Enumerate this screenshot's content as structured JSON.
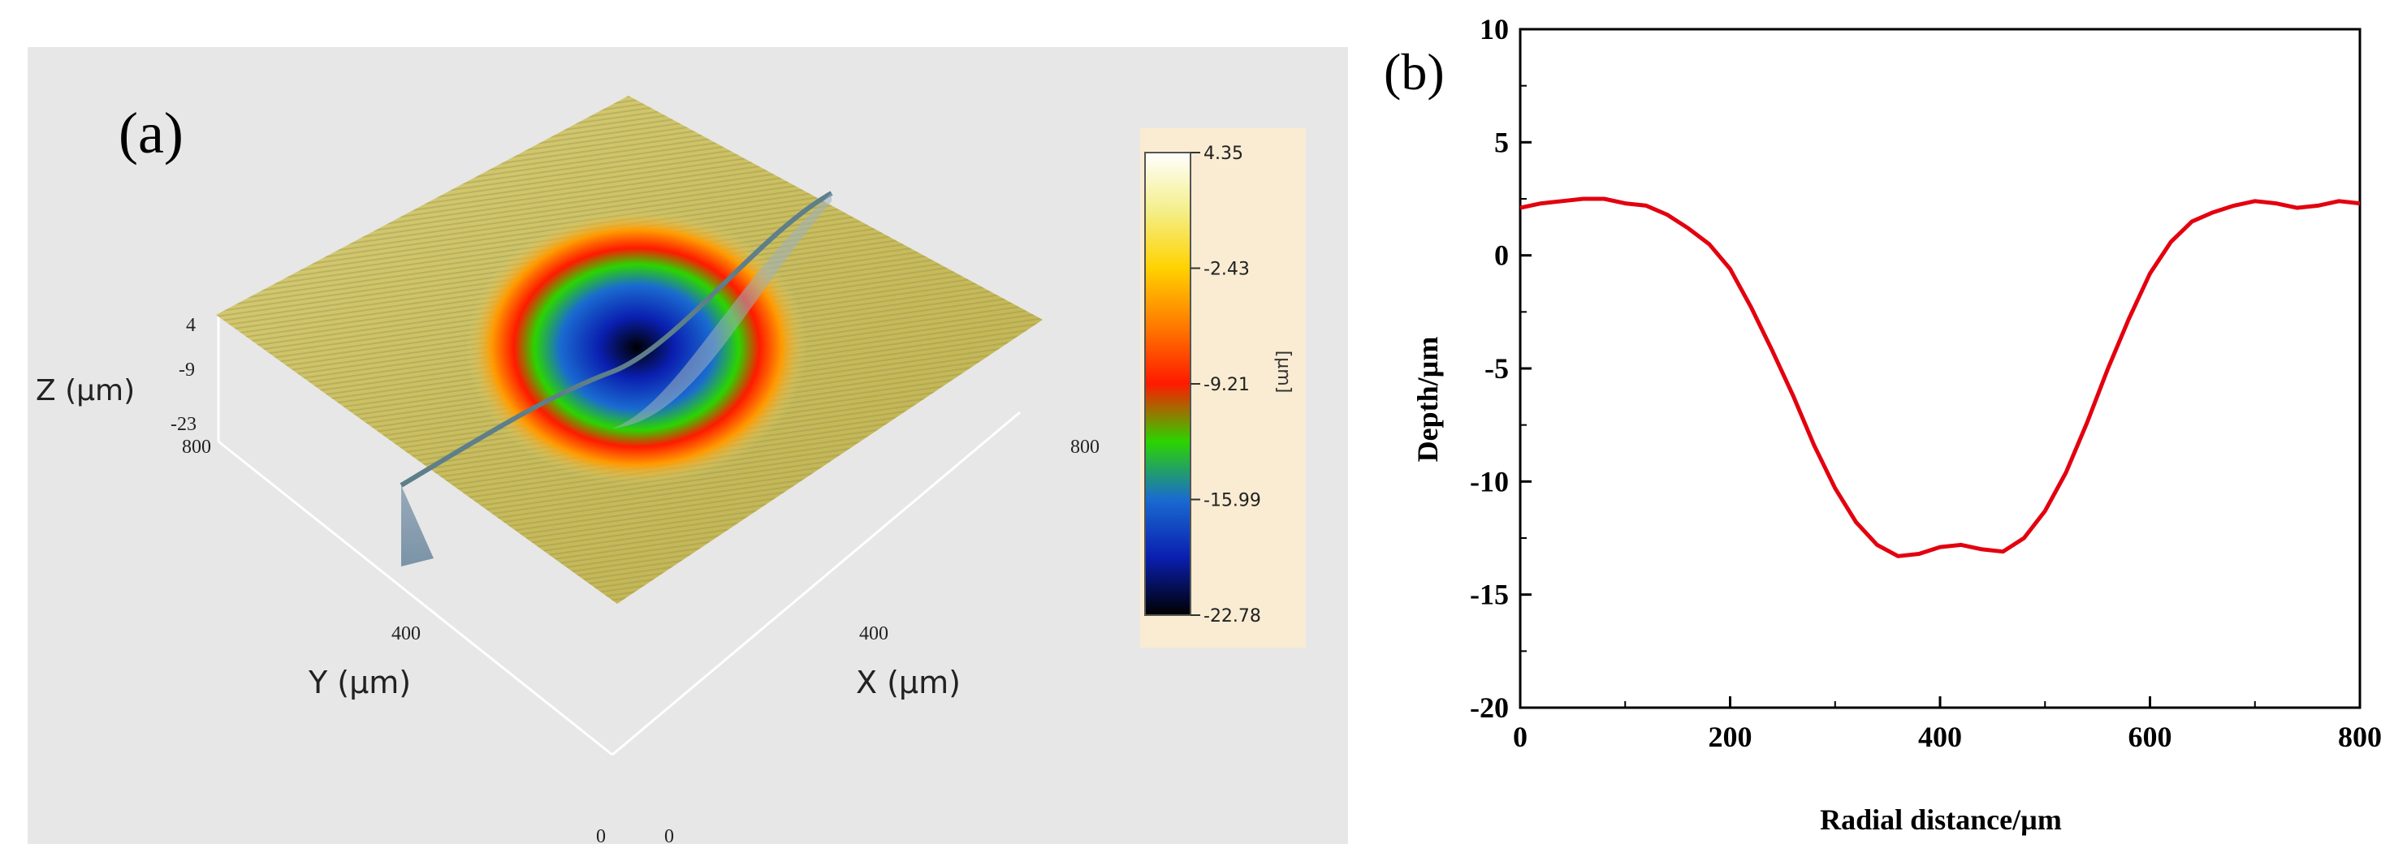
{
  "panel_a": {
    "label": "(a)",
    "z_axis_label": "Z (µm)",
    "z_ticks": [
      "4",
      "-9",
      "-23"
    ],
    "y_axis_label": "Y (µm)",
    "x_axis_label": "X (µm)",
    "y_ticks": [
      "800",
      "400",
      "0"
    ],
    "x_ticks": [
      "800",
      "400",
      "0"
    ],
    "colorbar": {
      "unit": "[µm]",
      "ticks": [
        "4.35",
        "-2.43",
        "-9.21",
        "-15.99",
        "-22.78"
      ],
      "colors": [
        "#ffffff",
        "#f4ef8a",
        "#ffd200",
        "#ff7a00",
        "#ff1a00",
        "#2bd400",
        "#1a6bd0",
        "#0a1fb0",
        "#000000"
      ]
    }
  },
  "chart_data": {
    "type": "line",
    "label": "(b)",
    "title": "",
    "xlabel": "Radial distance/µm",
    "ylabel": "Depth/µm",
    "xlim": [
      0,
      800
    ],
    "ylim": [
      -20,
      10
    ],
    "xticks": [
      0,
      200,
      400,
      600,
      800
    ],
    "yticks": [
      -20,
      -15,
      -10,
      -5,
      0,
      5,
      10
    ],
    "grid": false,
    "line_color": "#e3000f",
    "series": [
      {
        "x": [
          0,
          20,
          40,
          60,
          80,
          100,
          120,
          140,
          160,
          180,
          200,
          220,
          240,
          260,
          280,
          300,
          320,
          340,
          360,
          380,
          400,
          420,
          440,
          460,
          480,
          500,
          520,
          540,
          560,
          580,
          600,
          620,
          640,
          660,
          680,
          700,
          720,
          740,
          760,
          780,
          800
        ],
        "y": [
          2.1,
          2.3,
          2.4,
          2.5,
          2.5,
          2.3,
          2.2,
          1.8,
          1.2,
          0.5,
          -0.6,
          -2.3,
          -4.2,
          -6.2,
          -8.4,
          -10.3,
          -11.8,
          -12.8,
          -13.3,
          -13.2,
          -12.9,
          -12.8,
          -13.0,
          -13.1,
          -12.5,
          -11.3,
          -9.6,
          -7.4,
          -5.0,
          -2.8,
          -0.8,
          0.6,
          1.5,
          1.9,
          2.2,
          2.4,
          2.3,
          2.1,
          2.2,
          2.4,
          2.3
        ]
      }
    ]
  }
}
